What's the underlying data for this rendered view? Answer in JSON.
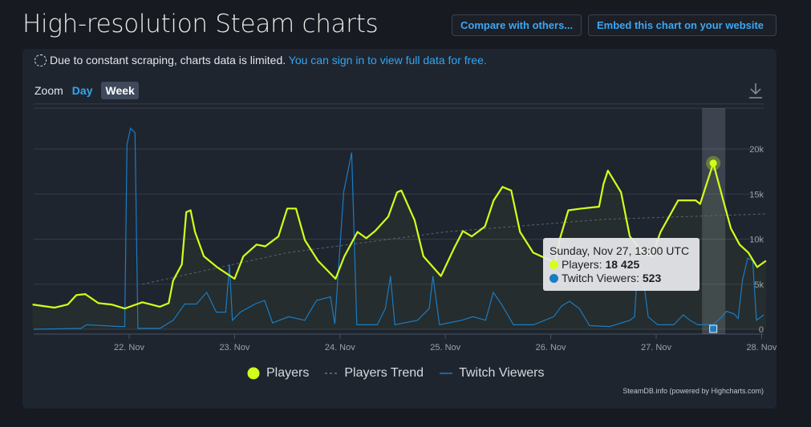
{
  "header": {
    "title": "High-resolution Steam charts",
    "compare_button": "Compare with others...",
    "embed_button": "Embed this chart on your website"
  },
  "notice": {
    "text": "Due to constant scraping, charts data is limited.",
    "link": "You can sign in to view full data for free."
  },
  "zoom": {
    "label": "Zoom",
    "options": [
      "Day",
      "Week"
    ],
    "selected": "Week"
  },
  "download_icon": "download-icon",
  "tooltip": {
    "date": "Sunday, Nov 27, 13:00 UTC",
    "players_label": "Players: ",
    "players_value": "18 425",
    "twitch_label": "Twitch Viewers: ",
    "twitch_value": "523"
  },
  "credits": "SteamDB.info (powered by Highcharts.com)",
  "colors": {
    "players": "#d4ff1a",
    "trend": "#5c6470",
    "twitch": "#1a7cc4",
    "background": "#1f252f"
  },
  "chart_data": {
    "type": "line",
    "x_ticks": [
      "22. Nov",
      "23. Nov",
      "24. Nov",
      "25. Nov",
      "26. Nov",
      "27. Nov",
      "28. Nov"
    ],
    "y_ticks": [
      "0",
      "5k",
      "10k",
      "15k",
      "20k"
    ],
    "ylim": [
      0,
      25000
    ],
    "grid": true,
    "legend_position": "bottom",
    "highlighted_point": "Nov 27 13:00",
    "series": [
      {
        "name": "Players",
        "points": [
          [
            "Nov 21 02:00",
            2750
          ],
          [
            "Nov 21 07:00",
            2400
          ],
          [
            "Nov 21 10:00",
            2750
          ],
          [
            "Nov 21 12:00",
            3800
          ],
          [
            "Nov 21 14:00",
            3900
          ],
          [
            "Nov 21 17:00",
            2900
          ],
          [
            "Nov 21 20:00",
            2750
          ],
          [
            "Nov 21 23:00",
            2300
          ],
          [
            "Nov 22 03:00",
            3000
          ],
          [
            "Nov 22 05:00",
            2750
          ],
          [
            "Nov 22 07:00",
            2500
          ],
          [
            "Nov 22 09:00",
            2900
          ],
          [
            "Nov 22 10:00",
            5400
          ],
          [
            "Nov 22 12:00",
            7200
          ],
          [
            "Nov 22 13:00",
            13000
          ],
          [
            "Nov 22 14:00",
            13200
          ],
          [
            "Nov 22 15:00",
            10800
          ],
          [
            "Nov 22 17:00",
            8100
          ],
          [
            "Nov 22 20:00",
            6900
          ],
          [
            "Nov 23 00:00",
            5600
          ],
          [
            "Nov 23 02:00",
            8100
          ],
          [
            "Nov 23 05:00",
            9400
          ],
          [
            "Nov 23 07:00",
            9200
          ],
          [
            "Nov 23 10:00",
            10300
          ],
          [
            "Nov 23 12:00",
            13400
          ],
          [
            "Nov 23 14:00",
            13400
          ],
          [
            "Nov 23 16:00",
            9900
          ],
          [
            "Nov 23 19:00",
            7600
          ],
          [
            "Nov 23 23:00",
            5600
          ],
          [
            "Nov 24 01:00",
            8100
          ],
          [
            "Nov 24 04:00",
            10800
          ],
          [
            "Nov 24 06:00",
            10100
          ],
          [
            "Nov 24 08:00",
            10900
          ],
          [
            "Nov 24 11:00",
            12500
          ],
          [
            "Nov 24 13:00",
            15200
          ],
          [
            "Nov 24 14:00",
            15400
          ],
          [
            "Nov 24 17:00",
            12100
          ],
          [
            "Nov 24 19:00",
            8100
          ],
          [
            "Nov 24 23:00",
            5900
          ],
          [
            "Nov 25 02:00",
            9000
          ],
          [
            "Nov 25 04:00",
            10900
          ],
          [
            "Nov 25 06:00",
            10300
          ],
          [
            "Nov 25 09:00",
            11400
          ],
          [
            "Nov 25 11:00",
            14300
          ],
          [
            "Nov 25 13:00",
            15800
          ],
          [
            "Nov 25 15:00",
            15400
          ],
          [
            "Nov 25 17:00",
            10800
          ],
          [
            "Nov 25 20:00",
            8500
          ],
          [
            "Nov 26 01:00",
            7400
          ],
          [
            "Nov 26 02:00",
            9900
          ],
          [
            "Nov 26 04:00",
            13200
          ],
          [
            "Nov 26 07:00",
            13400
          ],
          [
            "Nov 26 11:00",
            13600
          ],
          [
            "Nov 26 12:00",
            16100
          ],
          [
            "Nov 26 13:00",
            17600
          ],
          [
            "Nov 26 16:00",
            15200
          ],
          [
            "Nov 26 18:00",
            10300
          ],
          [
            "Nov 26 21:00",
            8500
          ],
          [
            "Nov 26 23:00",
            8100
          ],
          [
            "Nov 27 01:00",
            10800
          ],
          [
            "Nov 27 05:00",
            14300
          ],
          [
            "Nov 27 09:00",
            14300
          ],
          [
            "Nov 27 10:00",
            13900
          ],
          [
            "Nov 27 13:00",
            18425
          ],
          [
            "Nov 27 15:00",
            14800
          ],
          [
            "Nov 27 17:00",
            11200
          ],
          [
            "Nov 27 19:00",
            9400
          ],
          [
            "Nov 27 21:00",
            8500
          ],
          [
            "Nov 27 23:00",
            6900
          ],
          [
            "Nov 28 01:00",
            7600
          ]
        ]
      },
      {
        "name": "Players Trend",
        "dashed": true,
        "points": [
          [
            "Nov 22 03:00",
            5000
          ],
          [
            "Nov 23 12:00",
            8500
          ],
          [
            "Nov 25 00:00",
            10800
          ],
          [
            "Nov 26 12:00",
            12200
          ],
          [
            "Nov 28 01:00",
            12800
          ]
        ]
      },
      {
        "name": "Twitch Viewers",
        "points": [
          [
            "Nov 21 02:15",
            0
          ],
          [
            "Nov 21 13:00",
            100
          ],
          [
            "Nov 21 14:20",
            500
          ],
          [
            "Nov 21 22:00",
            300
          ],
          [
            "Nov 21 23:00",
            300
          ],
          [
            "Nov 21 23:30",
            20500
          ],
          [
            "Nov 22 00:20",
            22300
          ],
          [
            "Nov 22 01:20",
            21800
          ],
          [
            "Nov 22 02:00",
            100
          ],
          [
            "Nov 22 07:00",
            100
          ],
          [
            "Nov 22 10:00",
            1000
          ],
          [
            "Nov 22 12:40",
            2800
          ],
          [
            "Nov 22 15:20",
            2800
          ],
          [
            "Nov 22 17:40",
            4100
          ],
          [
            "Nov 22 19:50",
            1900
          ],
          [
            "Nov 22 22:00",
            1900
          ],
          [
            "Nov 22 22:50",
            7200
          ],
          [
            "Nov 22 23:30",
            1000
          ],
          [
            "Nov 23 01:20",
            1900
          ],
          [
            "Nov 23 04:40",
            2800
          ],
          [
            "Nov 23 06:50",
            3200
          ],
          [
            "Nov 23 08:40",
            700
          ],
          [
            "Nov 23 12:20",
            1400
          ],
          [
            "Nov 23 16:00",
            1000
          ],
          [
            "Nov 23 18:40",
            3200
          ],
          [
            "Nov 23 21:50",
            3600
          ],
          [
            "Nov 23 22:50",
            600
          ],
          [
            "Nov 24 00:50",
            15200
          ],
          [
            "Nov 24 02:40",
            19600
          ],
          [
            "Nov 24 03:50",
            500
          ],
          [
            "Nov 24 08:30",
            500
          ],
          [
            "Nov 24 10:20",
            2300
          ],
          [
            "Nov 24 11:30",
            5900
          ],
          [
            "Nov 24 12:30",
            500
          ],
          [
            "Nov 24 17:40",
            1000
          ],
          [
            "Nov 24 20:20",
            2300
          ],
          [
            "Nov 24 21:10",
            5900
          ],
          [
            "Nov 24 22:40",
            500
          ],
          [
            "Nov 25 03:40",
            1000
          ],
          [
            "Nov 25 06:20",
            1400
          ],
          [
            "Nov 25 09:10",
            1000
          ],
          [
            "Nov 25 10:55",
            4100
          ],
          [
            "Nov 25 12:45",
            2800
          ],
          [
            "Nov 25 15:30",
            500
          ],
          [
            "Nov 25 20:05",
            500
          ],
          [
            "Nov 26 00:40",
            1400
          ],
          [
            "Nov 26 02:30",
            2600
          ],
          [
            "Nov 26 04:15",
            3100
          ],
          [
            "Nov 26 06:30",
            2300
          ],
          [
            "Nov 26 08:50",
            400
          ],
          [
            "Nov 26 13:25",
            300
          ],
          [
            "Nov 26 18:00",
            1000
          ],
          [
            "Nov 26 19:05",
            1400
          ],
          [
            "Nov 26 19:50",
            7600
          ],
          [
            "Nov 26 20:40",
            7200
          ],
          [
            "Nov 26 22:10",
            1400
          ],
          [
            "Nov 27 00:20",
            500
          ],
          [
            "Nov 27 04:00",
            500
          ],
          [
            "Nov 27 06:10",
            1600
          ],
          [
            "Nov 27 07:40",
            1000
          ],
          [
            "Nov 27 09:30",
            500
          ],
          [
            "Nov 27 13:00",
            523
          ],
          [
            "Nov 27 15:00",
            1400
          ],
          [
            "Nov 27 16:00",
            2000
          ],
          [
            "Nov 27 17:45",
            1700
          ],
          [
            "Nov 27 18:40",
            1200
          ],
          [
            "Nov 27 19:40",
            5500
          ],
          [
            "Nov 27 20:50",
            7900
          ],
          [
            "Nov 27 22:00",
            7600
          ],
          [
            "Nov 27 22:50",
            1000
          ],
          [
            "Nov 28 00:30",
            1600
          ]
        ]
      }
    ]
  }
}
